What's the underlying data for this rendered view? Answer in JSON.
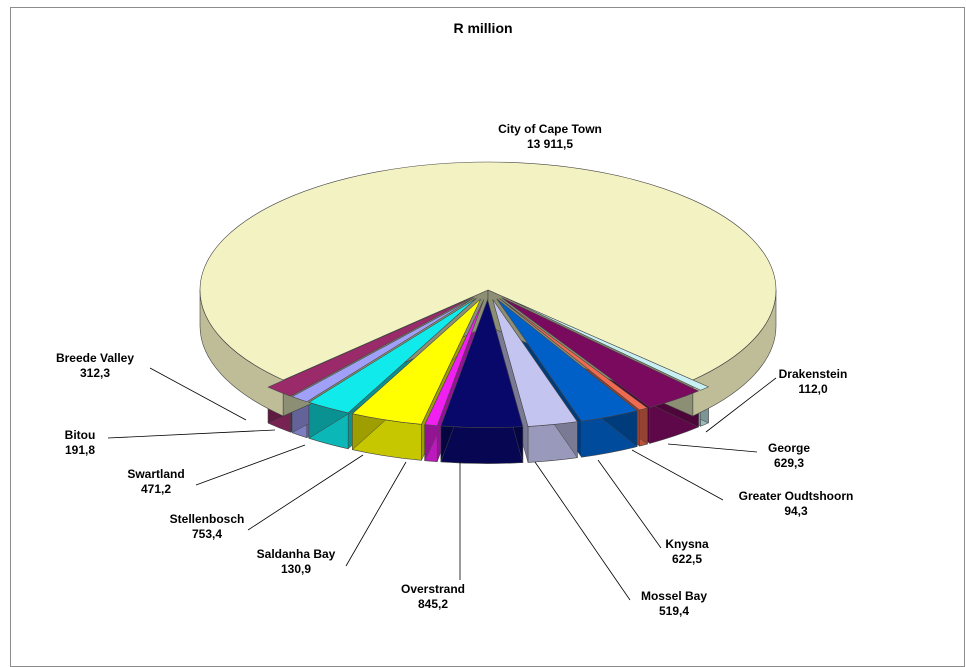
{
  "chart_data": {
    "type": "pie",
    "title": "R million",
    "three_d": true,
    "slices": [
      {
        "label": "City of Cape Town",
        "value_text": "13 911,5",
        "value": 13911.5,
        "color": "#f3f2c2"
      },
      {
        "label": "Drakenstein",
        "value_text": "112,0",
        "value": 112.0,
        "color": "#c8f0f2"
      },
      {
        "label": "George",
        "value_text": "629,3",
        "value": 629.3,
        "color": "#7a0a5e"
      },
      {
        "label": "Greater Oudtshoorn",
        "value_text": "94,3",
        "value": 94.3,
        "color": "#f06a50"
      },
      {
        "label": "Knysna",
        "value_text": "622,5",
        "value": 622.5,
        "color": "#0060c8"
      },
      {
        "label": "Mossel Bay",
        "value_text": "519,4",
        "value": 519.4,
        "color": "#c4c4f0"
      },
      {
        "label": "Overstrand",
        "value_text": "845,2",
        "value": 845.2,
        "color": "#08086a"
      },
      {
        "label": "Saldanha Bay",
        "value_text": "130,9",
        "value": 130.9,
        "color": "#f020f0"
      },
      {
        "label": "Stellenbosch",
        "value_text": "753,4",
        "value": 753.4,
        "color": "#ffff00"
      },
      {
        "label": "Swartland",
        "value_text": "471,2",
        "value": 471.2,
        "color": "#10eaea"
      },
      {
        "label": "Bitou",
        "value_text": "191,8",
        "value": 191.8,
        "color": "#a0a0f8"
      },
      {
        "label": "Breede Valley",
        "value_text": "312,3",
        "value": 312.3,
        "color": "#9a2a6a"
      }
    ]
  }
}
